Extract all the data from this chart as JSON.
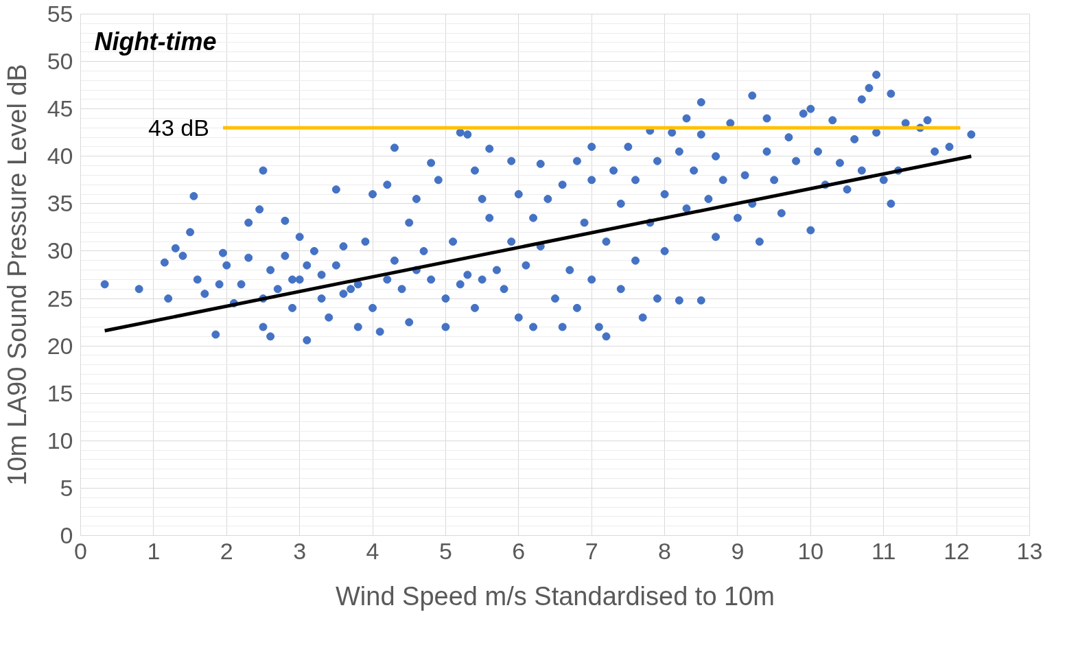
{
  "chart_data": {
    "type": "scatter",
    "title": "Night-time",
    "xlabel": "Wind Speed m/s Standardised to 10m",
    "ylabel": "10m LA90 Sound Pressure Level dB",
    "xlim": [
      0,
      13
    ],
    "xticks": [
      0,
      1,
      2,
      3,
      4,
      5,
      6,
      7,
      8,
      9,
      10,
      11,
      12,
      13
    ],
    "ylim": [
      0,
      55
    ],
    "yticks": [
      0,
      5,
      10,
      15,
      20,
      25,
      30,
      35,
      40,
      45,
      50,
      55
    ],
    "grid": true,
    "annotations": [
      {
        "text": "43 dB",
        "x": 1.95,
        "y": 43
      }
    ],
    "series": [
      {
        "marker": "circle",
        "color": "#4472c4",
        "x": [
          0.33,
          0.8,
          1.15,
          1.2,
          1.3,
          1.4,
          1.5,
          1.55,
          1.6,
          1.7,
          1.85,
          1.9,
          1.95,
          2.0,
          2.1,
          2.2,
          2.3,
          2.3,
          2.45,
          2.5,
          2.5,
          2.6,
          2.6,
          2.7,
          2.8,
          2.8,
          2.9,
          3.0,
          3.0,
          3.1,
          3.2,
          3.3,
          3.4,
          3.5,
          3.5,
          3.6,
          3.7,
          3.8,
          3.9,
          4.0,
          4.0,
          4.1,
          4.2,
          4.3,
          4.3,
          4.4,
          4.5,
          4.5,
          4.6,
          4.7,
          4.8,
          4.8,
          4.9,
          5.0,
          5.0,
          5.1,
          5.2,
          5.3,
          5.3,
          5.4,
          5.4,
          5.5,
          5.6,
          5.6,
          5.7,
          5.8,
          5.9,
          5.9,
          6.0,
          6.0,
          6.1,
          6.2,
          6.2,
          6.3,
          6.3,
          6.4,
          6.5,
          6.6,
          6.6,
          6.7,
          6.8,
          6.8,
          6.9,
          7.0,
          7.0,
          7.0,
          7.1,
          7.2,
          7.2,
          7.3,
          7.4,
          7.4,
          7.5,
          7.6,
          7.6,
          7.7,
          7.8,
          7.8,
          7.9,
          7.9,
          8.0,
          8.0,
          8.1,
          8.2,
          8.2,
          8.3,
          8.3,
          8.4,
          8.5,
          8.5,
          8.5,
          8.6,
          8.7,
          8.7,
          8.8,
          8.9,
          9.0,
          9.1,
          9.2,
          9.2,
          9.3,
          9.4,
          9.4,
          9.5,
          9.6,
          9.7,
          9.8,
          9.9,
          10.0,
          10.0,
          10.1,
          10.2,
          10.3,
          10.4,
          10.5,
          10.6,
          10.7,
          10.7,
          10.8,
          10.9,
          10.9,
          11.0,
          11.1,
          11.1,
          11.2,
          11.3,
          11.5,
          11.6,
          11.7,
          11.9,
          12.2,
          3.3,
          2.9,
          3.6,
          4.2,
          4.6,
          5.2,
          5.5,
          2.5,
          3.1,
          3.8
        ],
        "values": [
          26.5,
          26,
          28.8,
          25,
          30.3,
          29.5,
          32,
          35.8,
          27,
          25.5,
          21.2,
          26.5,
          29.8,
          28.5,
          24.5,
          26.5,
          33,
          29.3,
          34.4,
          38.5,
          22,
          21,
          28,
          26,
          33.2,
          29.5,
          24,
          31.5,
          27,
          20.6,
          30,
          25,
          23,
          36.5,
          28.5,
          30.5,
          26,
          22,
          31,
          36,
          24,
          21.5,
          37,
          40.9,
          29,
          26,
          33,
          22.5,
          35.5,
          30,
          39.3,
          27,
          37.5,
          25,
          22,
          31,
          42.5,
          42.3,
          27.5,
          38.5,
          24,
          35.5,
          40.8,
          33.5,
          28,
          26,
          39.5,
          31,
          23,
          36,
          28.5,
          33.5,
          22,
          39.2,
          30.5,
          35.5,
          25,
          37,
          22,
          28,
          39.5,
          24,
          33,
          41,
          37.5,
          27,
          22,
          31,
          21,
          38.5,
          35,
          26,
          41,
          37.5,
          29,
          23,
          42.7,
          33,
          39.5,
          25,
          36,
          30,
          42.5,
          40.5,
          24.8,
          44,
          34.5,
          38.5,
          45.7,
          42.3,
          24.8,
          35.5,
          40,
          31.5,
          37.5,
          43.5,
          33.5,
          38,
          46.4,
          35,
          31,
          44,
          40.5,
          37.5,
          34,
          42,
          39.5,
          44.5,
          45,
          32.2,
          40.5,
          37,
          43.8,
          39.3,
          36.5,
          41.8,
          46,
          38.5,
          47.2,
          48.6,
          42.5,
          37.5,
          46.6,
          35,
          38.5,
          43.5,
          43,
          43.8,
          40.5,
          41,
          42.3,
          27.5,
          27,
          25.5,
          27,
          28,
          26.5,
          27,
          25,
          28.5,
          26.5
        ]
      },
      {
        "type": "line",
        "color": "#000000",
        "x": [
          0.33,
          12.2
        ],
        "values": [
          21.6,
          40.0
        ]
      },
      {
        "type": "line",
        "color": "#ffc000",
        "x": [
          1.95,
          12.05
        ],
        "values": [
          43,
          43
        ]
      }
    ]
  }
}
